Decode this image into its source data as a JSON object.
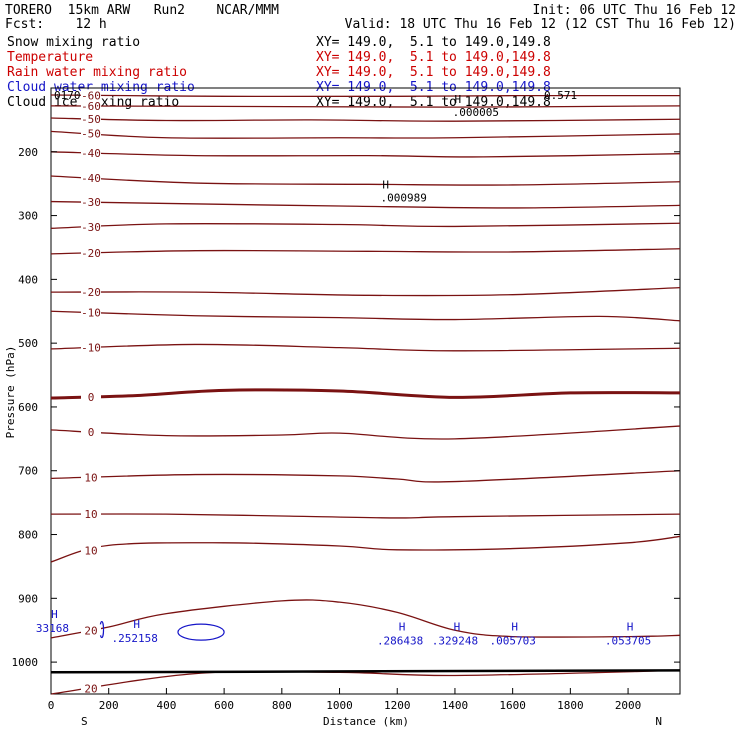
{
  "header": {
    "title": "TORERO  15km ARW   Run2    NCAR/MMM",
    "init": "Init: 06 UTC Thu 16 Feb 12",
    "fcst": "Fcst:    12 h",
    "valid": "Valid: 18 UTC Thu 16 Feb 12 (12 CST Thu 16 Feb 12)"
  },
  "fields": [
    {
      "name": "Snow mixing ratio",
      "xy": "XY= 149.0,  5.1 to 149.0,149.8",
      "color": "#000000"
    },
    {
      "name": "Temperature",
      "xy": "XY= 149.0,  5.1 to 149.0,149.8",
      "color": "#cc0000"
    },
    {
      "name": "Rain water mixing ratio",
      "xy": "XY= 149.0,  5.1 to 149.0,149.8",
      "color": "#cc0000"
    },
    {
      "name": "Cloud water mixing ratio",
      "xy": "XY= 149.0,  5.1 to 149.0,149.8",
      "color": "#1515c8"
    },
    {
      "name": "Cloud ice mixing ratio",
      "xy": "XY= 149.0,  5.1 to 149.0,149.8",
      "color": "#000000"
    }
  ],
  "chart_data": {
    "type": "contour",
    "xlabel": "Distance (km)",
    "ylabel": "Pressure (hPa)",
    "xlim": [
      0,
      2180
    ],
    "ylim": [
      100,
      1050
    ],
    "x_ticks": [
      0,
      200,
      400,
      600,
      800,
      1000,
      1200,
      1400,
      1600,
      1800,
      2000
    ],
    "y_ticks": [
      200,
      300,
      400,
      500,
      600,
      700,
      800,
      900,
      1000
    ],
    "left_end_label": "S",
    "right_end_label": "N",
    "line_color": "#7a1212",
    "temperature_contours": [
      {
        "value": -60,
        "points": [
          [
            0,
            111
          ],
          [
            600,
            113
          ],
          [
            1200,
            113
          ],
          [
            1600,
            112
          ],
          [
            2180,
            112
          ]
        ]
      },
      {
        "value": -60,
        "points": [
          [
            0,
            128
          ],
          [
            700,
            129
          ],
          [
            1400,
            130
          ],
          [
            2180,
            128
          ]
        ]
      },
      {
        "value": -50,
        "points": [
          [
            0,
            147
          ],
          [
            400,
            151
          ],
          [
            900,
            150
          ],
          [
            1400,
            152
          ],
          [
            2180,
            149
          ]
        ]
      },
      {
        "value": -50,
        "points": [
          [
            0,
            168
          ],
          [
            400,
            178
          ],
          [
            1000,
            178
          ],
          [
            1400,
            178
          ],
          [
            2180,
            172
          ]
        ]
      },
      {
        "value": -40,
        "points": [
          [
            0,
            200
          ],
          [
            500,
            206
          ],
          [
            1100,
            206
          ],
          [
            1500,
            208
          ],
          [
            2180,
            203
          ]
        ]
      },
      {
        "value": -40,
        "points": [
          [
            0,
            238
          ],
          [
            500,
            249
          ],
          [
            1100,
            251
          ],
          [
            1600,
            252
          ],
          [
            2180,
            247
          ]
        ]
      },
      {
        "value": -30,
        "points": [
          [
            0,
            278
          ],
          [
            400,
            281
          ],
          [
            1000,
            285
          ],
          [
            1600,
            288
          ],
          [
            2180,
            284
          ]
        ]
      },
      {
        "value": -30,
        "points": [
          [
            0,
            320
          ],
          [
            400,
            313
          ],
          [
            1000,
            314
          ],
          [
            1400,
            317
          ],
          [
            2180,
            312
          ]
        ]
      },
      {
        "value": -20,
        "points": [
          [
            0,
            360
          ],
          [
            500,
            355
          ],
          [
            1100,
            356
          ],
          [
            1600,
            357
          ],
          [
            2180,
            352
          ]
        ]
      },
      {
        "value": -20,
        "points": [
          [
            0,
            420
          ],
          [
            500,
            420
          ],
          [
            1100,
            425
          ],
          [
            1600,
            424
          ],
          [
            2180,
            413
          ]
        ]
      },
      {
        "value": -10,
        "points": [
          [
            0,
            450
          ],
          [
            500,
            457
          ],
          [
            1000,
            460
          ],
          [
            1400,
            463
          ],
          [
            1900,
            458
          ],
          [
            2180,
            465
          ]
        ]
      },
      {
        "value": -10,
        "points": [
          [
            0,
            509
          ],
          [
            500,
            502
          ],
          [
            1000,
            507
          ],
          [
            1400,
            512
          ],
          [
            2180,
            508
          ]
        ]
      },
      {
        "value": 0,
        "bold": true,
        "points": [
          [
            0,
            586
          ],
          [
            300,
            582
          ],
          [
            600,
            574
          ],
          [
            1000,
            575
          ],
          [
            1400,
            585
          ],
          [
            1800,
            578
          ],
          [
            2180,
            578
          ]
        ]
      },
      {
        "value": 0,
        "points": [
          [
            0,
            636
          ],
          [
            400,
            645
          ],
          [
            800,
            644
          ],
          [
            1000,
            641
          ],
          [
            1400,
            650
          ],
          [
            2180,
            630
          ]
        ]
      },
      {
        "value": 10,
        "points": [
          [
            0,
            712
          ],
          [
            500,
            706
          ],
          [
            1000,
            708
          ],
          [
            1200,
            713
          ],
          [
            1400,
            717
          ],
          [
            2180,
            700
          ]
        ]
      },
      {
        "value": 10,
        "points": [
          [
            0,
            768
          ],
          [
            400,
            768
          ],
          [
            800,
            771
          ],
          [
            1200,
            774
          ],
          [
            1400,
            772
          ],
          [
            2180,
            768
          ]
        ]
      },
      {
        "value": 10,
        "points": [
          [
            0,
            843
          ],
          [
            200,
            817
          ],
          [
            600,
            813
          ],
          [
            1000,
            818
          ],
          [
            1200,
            824
          ],
          [
            1600,
            822
          ],
          [
            2000,
            813
          ],
          [
            2180,
            803
          ]
        ]
      },
      {
        "value": 20,
        "points": [
          [
            0,
            962
          ],
          [
            200,
            945
          ],
          [
            400,
            924
          ],
          [
            800,
            904
          ],
          [
            1000,
            906
          ],
          [
            1200,
            922
          ],
          [
            1400,
            950
          ],
          [
            1600,
            960
          ],
          [
            2000,
            960
          ],
          [
            2180,
            958
          ]
        ]
      },
      {
        "value": 20,
        "points": [
          [
            0,
            1050
          ],
          [
            500,
            1018
          ],
          [
            1000,
            1016
          ],
          [
            1400,
            1021
          ],
          [
            2180,
            1013
          ]
        ]
      }
    ],
    "cloud_water_maxima": [
      {
        "x": 5,
        "p": 940,
        "label": "33168"
      },
      {
        "x": 290,
        "p": 956,
        "label": ".252158"
      },
      {
        "x": 1210,
        "p": 960,
        "label": ".286438"
      },
      {
        "x": 1400,
        "p": 960,
        "label": ".329248"
      },
      {
        "x": 1600,
        "p": 960,
        "label": ".005703"
      },
      {
        "x": 2000,
        "p": 960,
        "label": ".053705"
      }
    ],
    "upper_maxima": [
      {
        "x": 1160,
        "p": 264,
        "label": ".000989"
      },
      {
        "x": 1410,
        "p": 130,
        "label": ".000005"
      }
    ],
    "left_corner_label": "0170",
    "right_corner_label": "0.571"
  }
}
